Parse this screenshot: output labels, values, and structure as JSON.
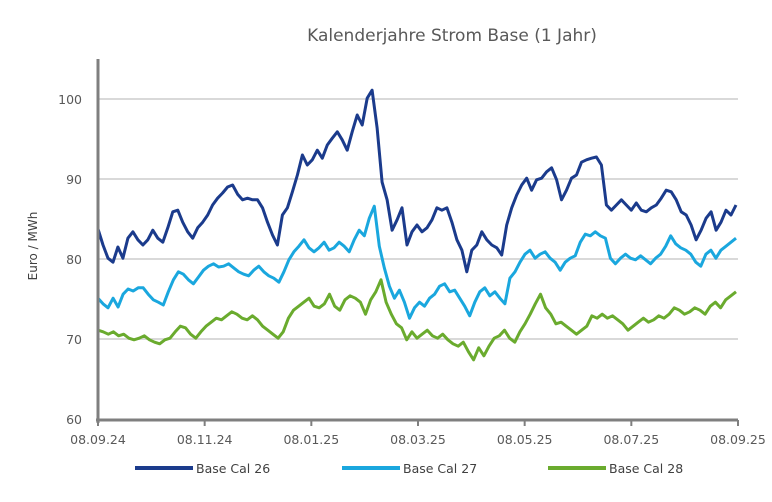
{
  "chart_data": {
    "type": "line",
    "title": "Kalenderjahre Strom Base (1 Jahr)",
    "xlabel": "",
    "ylabel": "Euro / MWh",
    "ylim": [
      60,
      105
    ],
    "yticks": [
      60,
      70,
      80,
      90,
      100
    ],
    "ytick_labels": [
      "60",
      "70",
      "80",
      "90",
      "100"
    ],
    "xtick_labels": [
      "08.09.24",
      "08.11.24",
      "08.01.25",
      "08.03.25",
      "08.05.25",
      "08.07.25",
      "08.09.25"
    ],
    "grid": "horizontal",
    "legend": "bottom",
    "x_start": "08.09.24",
    "x_end": "08.09.25",
    "series": [
      {
        "name": "Base Cal 26",
        "color": "#1b3b8c",
        "values": [
          83.75,
          81.75,
          80.1,
          79.6,
          81.5,
          80.1,
          82.6,
          83.4,
          82.4,
          81.75,
          82.4,
          83.6,
          82.6,
          82.1,
          83.9,
          85.9,
          86.1,
          84.6,
          83.4,
          82.6,
          83.9,
          84.6,
          85.5,
          86.75,
          87.6,
          88.25,
          89.0,
          89.25,
          88.1,
          87.4,
          87.6,
          87.4,
          87.4,
          86.4,
          84.6,
          83.0,
          81.75,
          85.5,
          86.4,
          88.4,
          90.5,
          93.0,
          91.75,
          92.4,
          93.6,
          92.6,
          94.25,
          95.1,
          95.9,
          94.9,
          93.6,
          95.9,
          98.0,
          96.75,
          100.1,
          101.1,
          96.4,
          89.6,
          87.4,
          83.6,
          84.9,
          86.4,
          81.75,
          83.4,
          84.25,
          83.4,
          83.9,
          84.9,
          86.4,
          86.1,
          86.4,
          84.6,
          82.4,
          81.1,
          78.4,
          81.1,
          81.75,
          83.4,
          82.4,
          81.75,
          81.4,
          80.5,
          84.25,
          86.4,
          88.0,
          89.25,
          90.1,
          88.6,
          89.9,
          90.1,
          90.9,
          91.4,
          89.9,
          87.4,
          88.6,
          90.1,
          90.5,
          92.1,
          92.4,
          92.6,
          92.75,
          91.75,
          86.75,
          86.1,
          86.75,
          87.4,
          86.75,
          86.1,
          87.0,
          86.1,
          85.9,
          86.4,
          86.75,
          87.6,
          88.6,
          88.4,
          87.4,
          85.9,
          85.5,
          84.25,
          82.4,
          83.6,
          85.1,
          85.9,
          83.6,
          84.6,
          86.1,
          85.5,
          86.75
        ]
      },
      {
        "name": "Base Cal 27",
        "color": "#1aa7de",
        "values": [
          75.1,
          74.4,
          73.9,
          75.1,
          74.0,
          75.6,
          76.25,
          76.0,
          76.4,
          76.4,
          75.6,
          74.9,
          74.6,
          74.25,
          75.9,
          77.4,
          78.4,
          78.1,
          77.4,
          76.9,
          77.75,
          78.6,
          79.1,
          79.4,
          79.0,
          79.1,
          79.4,
          78.9,
          78.4,
          78.1,
          77.9,
          78.6,
          79.1,
          78.4,
          77.9,
          77.6,
          77.1,
          78.4,
          79.9,
          80.9,
          81.6,
          82.4,
          81.4,
          80.9,
          81.4,
          82.1,
          81.1,
          81.4,
          82.1,
          81.6,
          80.9,
          82.4,
          83.6,
          82.9,
          85.1,
          86.6,
          81.6,
          78.9,
          76.6,
          75.1,
          76.1,
          74.6,
          72.6,
          73.9,
          74.6,
          74.1,
          75.1,
          75.6,
          76.6,
          76.9,
          75.9,
          76.1,
          75.1,
          74.1,
          72.9,
          74.6,
          75.9,
          76.4,
          75.4,
          75.9,
          75.1,
          74.4,
          77.6,
          78.4,
          79.6,
          80.6,
          81.1,
          80.1,
          80.6,
          80.9,
          80.1,
          79.6,
          78.6,
          79.6,
          80.1,
          80.4,
          82.1,
          83.1,
          82.9,
          83.4,
          82.9,
          82.6,
          80.1,
          79.4,
          80.1,
          80.6,
          80.1,
          79.9,
          80.4,
          79.9,
          79.4,
          80.1,
          80.6,
          81.6,
          82.9,
          81.9,
          81.4,
          81.1,
          80.6,
          79.6,
          79.1,
          80.6,
          81.1,
          80.1,
          81.1,
          81.6,
          82.1,
          82.6
        ]
      },
      {
        "name": "Base Cal 28",
        "color": "#6aab2e",
        "values": [
          71.1,
          70.9,
          70.6,
          70.9,
          70.4,
          70.6,
          70.1,
          69.9,
          70.1,
          70.4,
          69.9,
          69.6,
          69.4,
          69.9,
          70.1,
          70.9,
          71.6,
          71.4,
          70.6,
          70.1,
          70.9,
          71.6,
          72.1,
          72.6,
          72.4,
          72.9,
          73.4,
          73.1,
          72.6,
          72.4,
          72.9,
          72.4,
          71.6,
          71.1,
          70.6,
          70.1,
          70.9,
          72.6,
          73.6,
          74.1,
          74.6,
          75.1,
          74.1,
          73.9,
          74.4,
          75.6,
          74.1,
          73.6,
          74.9,
          75.4,
          75.1,
          74.6,
          73.1,
          74.9,
          75.9,
          77.4,
          74.6,
          73.1,
          71.9,
          71.4,
          69.9,
          70.9,
          70.1,
          70.6,
          71.1,
          70.4,
          70.1,
          70.6,
          69.9,
          69.4,
          69.1,
          69.6,
          68.4,
          67.4,
          68.9,
          67.9,
          69.1,
          70.1,
          70.4,
          71.1,
          70.1,
          69.6,
          70.9,
          71.9,
          73.1,
          74.4,
          75.6,
          73.9,
          73.1,
          71.9,
          72.1,
          71.6,
          71.1,
          70.6,
          71.1,
          71.6,
          72.9,
          72.6,
          73.1,
          72.6,
          72.9,
          72.4,
          71.9,
          71.1,
          71.6,
          72.1,
          72.6,
          72.1,
          72.4,
          72.9,
          72.6,
          73.1,
          73.9,
          73.6,
          73.1,
          73.4,
          73.9,
          73.6,
          73.1,
          74.1,
          74.6,
          73.9,
          74.9,
          75.4,
          75.9
        ]
      }
    ]
  }
}
